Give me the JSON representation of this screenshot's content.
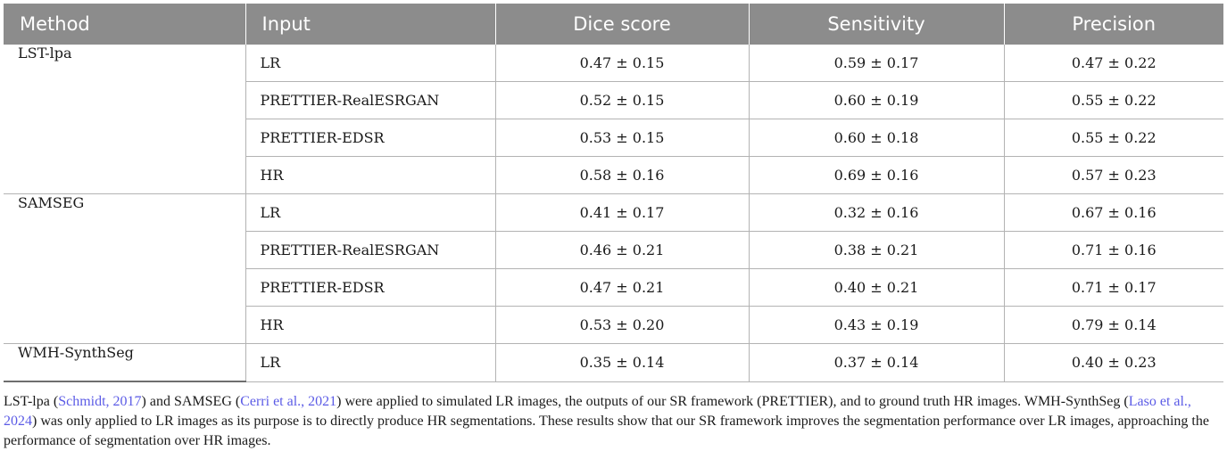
{
  "table": {
    "headers": [
      "Method",
      "Input",
      "Dice score",
      "Sensitivity",
      "Precision"
    ],
    "groups": [
      {
        "method": "LST-lpa",
        "rows": [
          {
            "input": "LR",
            "dice": "0.47 ± 0.15",
            "sensitivity": "0.59 ± 0.17",
            "precision": "0.47 ± 0.22"
          },
          {
            "input": "PRETTIER-RealESRGAN",
            "dice": "0.52 ± 0.15",
            "sensitivity": "0.60 ± 0.19",
            "precision": "0.55 ± 0.22"
          },
          {
            "input": "PRETTIER-EDSR",
            "dice": "0.53 ± 0.15",
            "sensitivity": "0.60 ± 0.18",
            "precision": "0.55 ± 0.22"
          },
          {
            "input": "HR",
            "dice": "0.58 ± 0.16",
            "sensitivity": "0.69 ± 0.16",
            "precision": "0.57 ± 0.23"
          }
        ]
      },
      {
        "method": "SAMSEG",
        "rows": [
          {
            "input": "LR",
            "dice": "0.41 ± 0.17",
            "sensitivity": "0.32 ± 0.16",
            "precision": "0.67 ± 0.16"
          },
          {
            "input": "PRETTIER-RealESRGAN",
            "dice": "0.46 ± 0.21",
            "sensitivity": "0.38 ± 0.21",
            "precision": "0.71 ± 0.16"
          },
          {
            "input": "PRETTIER-EDSR",
            "dice": "0.47 ± 0.21",
            "sensitivity": "0.40 ± 0.21",
            "precision": "0.71 ± 0.17"
          },
          {
            "input": "HR",
            "dice": "0.53 ± 0.20",
            "sensitivity": "0.43 ± 0.19",
            "precision": "0.79 ± 0.14"
          }
        ]
      },
      {
        "method": "WMH-SynthSeg",
        "rows": [
          {
            "input": "LR",
            "dice": "0.35 ± 0.14",
            "sensitivity": "0.37 ± 0.14",
            "precision": "0.40 ± 0.23"
          }
        ]
      }
    ]
  },
  "caption": {
    "p1": "LST-lpa (",
    "ref1": "Schmidt, 2017",
    "p2": ") and SAMSEG (",
    "ref2": "Cerri et al., 2021",
    "p3": ") were applied to simulated LR images, the outputs of our SR framework (PRETTIER), and to ground truth HR images. WMH-SynthSeg (",
    "ref3": "Laso et al., 2024",
    "p4": ") was only applied to LR images as its purpose is to directly produce HR segmentations. These results show that our SR framework improves the segmentation performance over LR images, approaching the performance of segmentation over HR images."
  },
  "colors": {
    "header_bg": "#8c8c8c",
    "link": "#5b5be6"
  }
}
